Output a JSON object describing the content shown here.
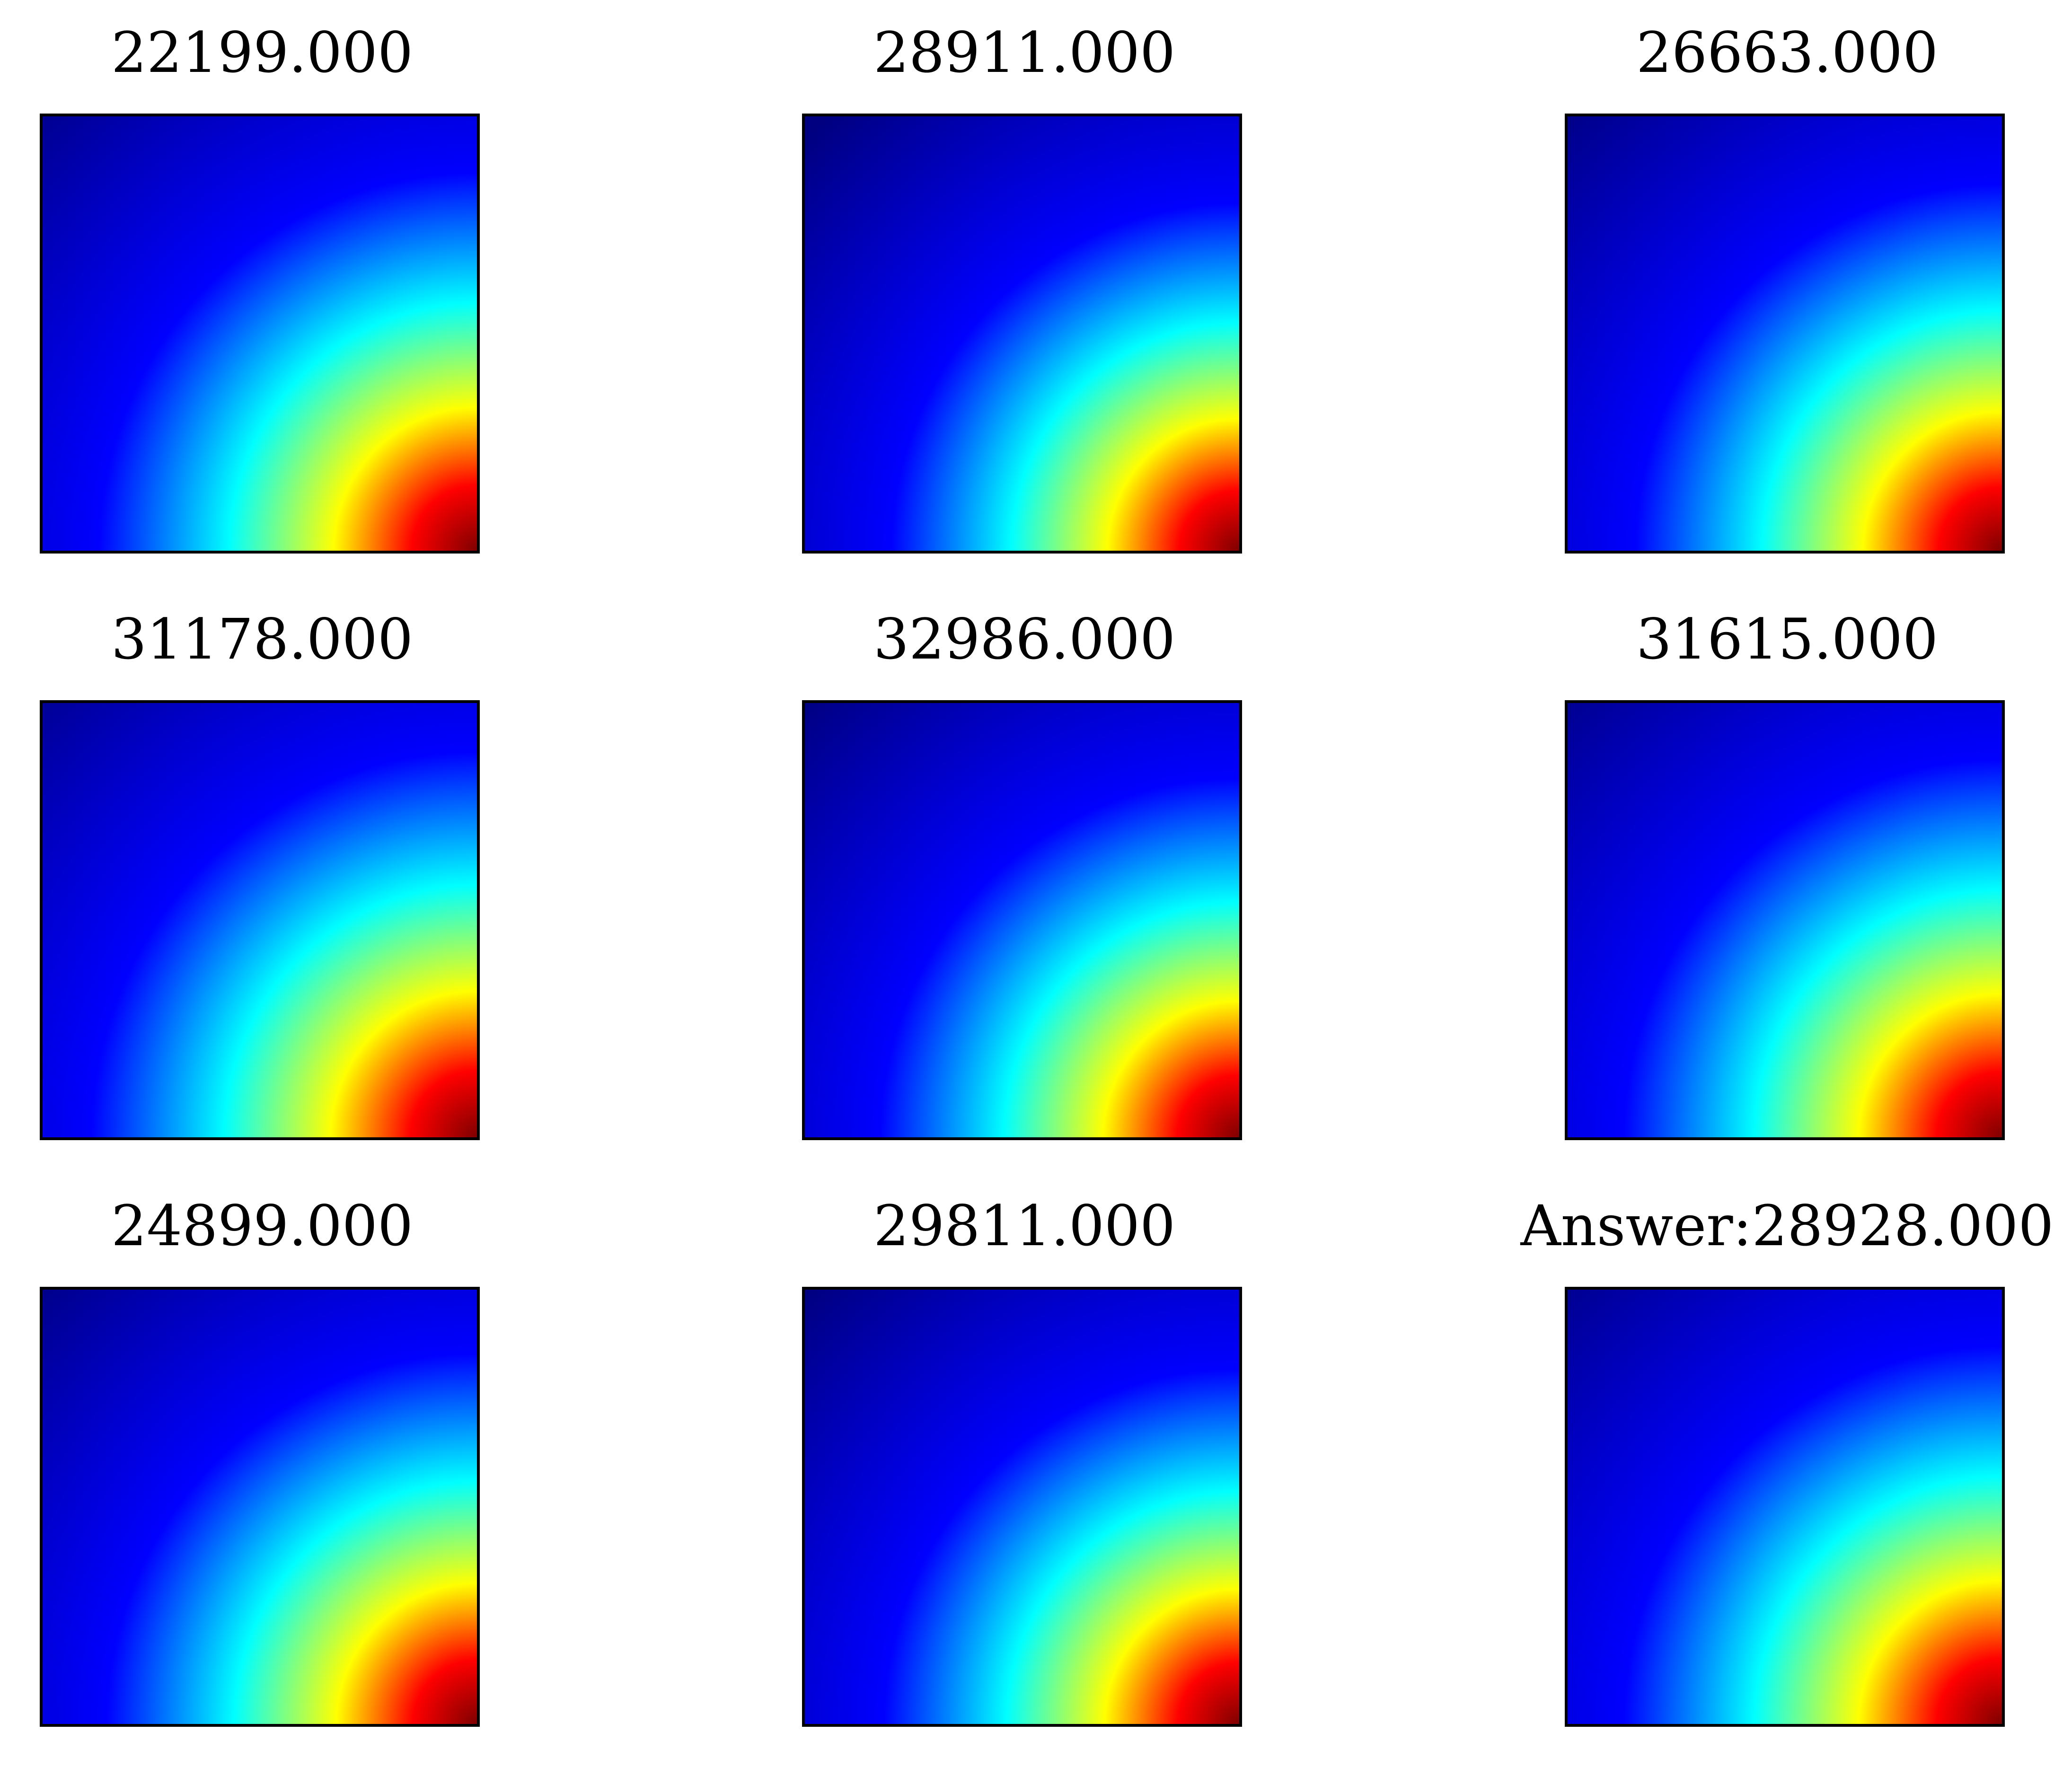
{
  "chart_data": [
    {
      "type": "heatmap",
      "title": "22199.000",
      "colormap": "jet",
      "grid": false,
      "axes_ticks": false
    },
    {
      "type": "heatmap",
      "title": "28911.000",
      "colormap": "jet",
      "grid": false,
      "axes_ticks": false
    },
    {
      "type": "heatmap",
      "title": "26663.000",
      "colormap": "jet",
      "grid": false,
      "axes_ticks": false
    },
    {
      "type": "heatmap",
      "title": "31178.000",
      "colormap": "jet",
      "grid": false,
      "axes_ticks": false
    },
    {
      "type": "heatmap",
      "title": "32986.000",
      "colormap": "jet",
      "grid": false,
      "axes_ticks": false
    },
    {
      "type": "heatmap",
      "title": "31615.000",
      "colormap": "jet",
      "grid": false,
      "axes_ticks": false
    },
    {
      "type": "heatmap",
      "title": "24899.000",
      "colormap": "jet",
      "grid": false,
      "axes_ticks": false
    },
    {
      "type": "heatmap",
      "title": "29811.000",
      "colormap": "jet",
      "grid": false,
      "axes_ticks": false
    },
    {
      "type": "heatmap",
      "title": "Answer:28928.000",
      "colormap": "jet",
      "grid": false,
      "axes_ticks": false
    }
  ],
  "colors": {
    "jet_dark_blue": "#000080",
    "jet_blue": "#0000ff",
    "jet_cyan": "#00ffff",
    "jet_yellow": "#ffff00",
    "jet_red": "#ff0000",
    "jet_dark_red": "#800000",
    "frame": "#000000",
    "background": "#ffffff"
  }
}
